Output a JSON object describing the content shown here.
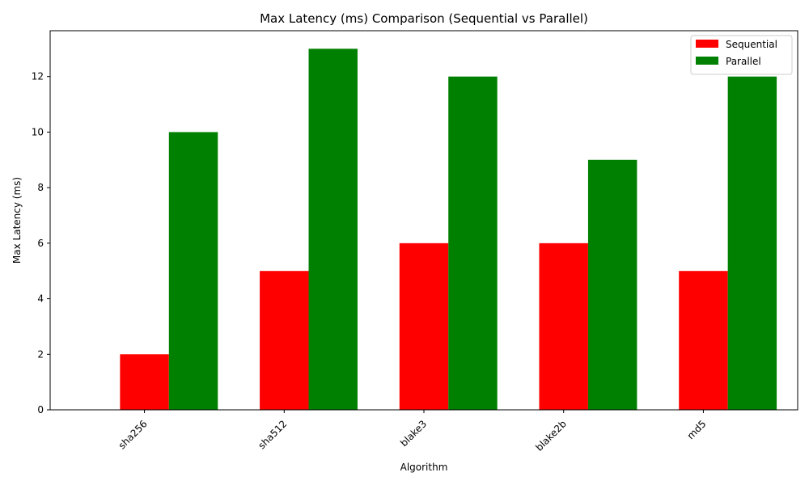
{
  "chart_data": {
    "type": "bar",
    "title": "Max Latency (ms) Comparison (Sequential vs Parallel)",
    "xlabel": "Algorithm",
    "ylabel": "Max Latency (ms)",
    "categories": [
      "sha256",
      "sha512",
      "blake3",
      "blake2b",
      "md5"
    ],
    "series": [
      {
        "name": "Sequential",
        "values": [
          2,
          5,
          6,
          6,
          5
        ],
        "color": "#ff0000"
      },
      {
        "name": "Parallel",
        "values": [
          10,
          13,
          12,
          9,
          12
        ],
        "color": "#008000"
      }
    ],
    "ylim": [
      0,
      13.65
    ],
    "yticks": [
      0,
      2,
      4,
      6,
      8,
      10,
      12
    ],
    "xtick_rotation": 45,
    "grid": false,
    "legend_position": "top-right"
  }
}
